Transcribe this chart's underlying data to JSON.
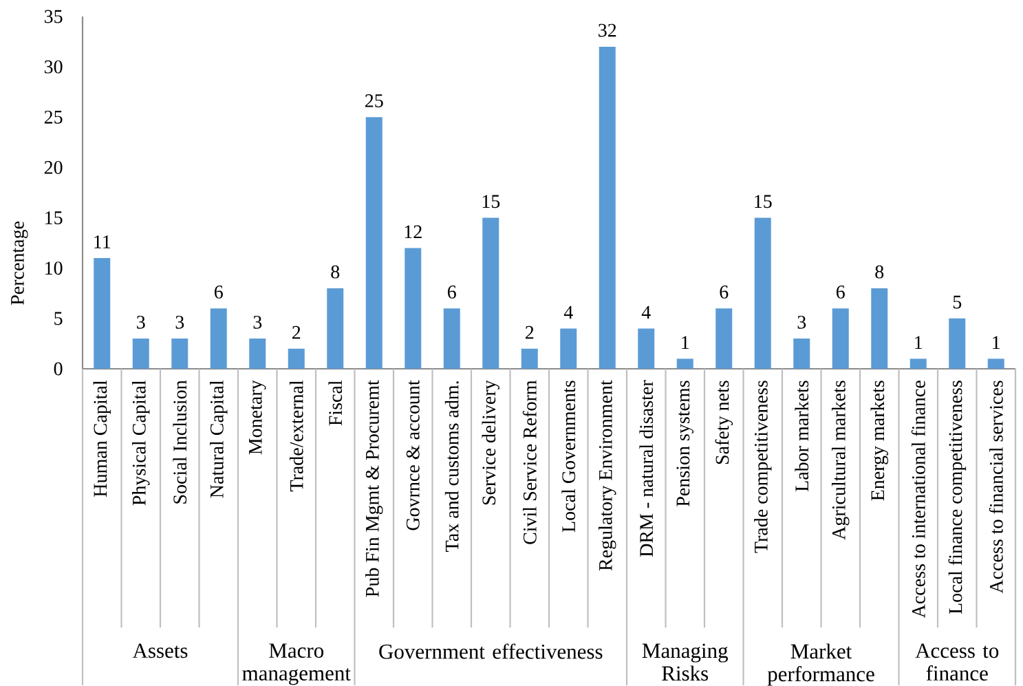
{
  "chart_data": {
    "type": "bar",
    "ylabel": "Percentage",
    "categories": [
      "Human Capital",
      "Physical Capital",
      "Social Inclusion",
      "Natural Capital",
      "Monetary",
      "Trade/external",
      "Fiscal",
      "Pub Fin Mgmt & Procuremt",
      "Govrnce & account",
      "Tax and customs adm.",
      "Service delivery",
      "Civil Service Reform",
      "Local Governments",
      "Regulatory Environment",
      "DRM - natural disaster",
      "Pension systems",
      "Safety nets",
      "Trade competitiveness",
      "Labor markets",
      "Agricultural markets",
      "Energy markets",
      "Access to international finance",
      "Local finance competitiveness",
      "Access to financial services"
    ],
    "values": [
      11,
      3,
      3,
      6,
      3,
      2,
      8,
      25,
      12,
      6,
      15,
      2,
      4,
      32,
      4,
      1,
      6,
      15,
      3,
      6,
      8,
      1,
      5,
      1
    ],
    "color": "#5b9bd5",
    "ylim": [
      0,
      35
    ],
    "yticks": [
      0,
      5,
      10,
      15,
      20,
      25,
      30,
      35
    ],
    "data_labels": true,
    "annotations": [
      "Assets",
      "Macro management",
      "Government effectiveness",
      "Managing Risks",
      "Market performance",
      "Access to finance"
    ]
  }
}
